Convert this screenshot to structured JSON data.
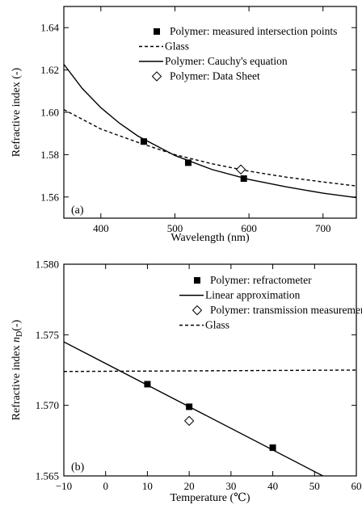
{
  "chart_data": [
    {
      "type": "line",
      "panel_label": "(a)",
      "xlabel": "Wavelength (nm)",
      "ylabel": "Refractive index (-)",
      "xlim": [
        350,
        745
      ],
      "ylim": [
        1.55,
        1.65
      ],
      "xticks": [
        400,
        500,
        600,
        700
      ],
      "yticks": [
        1.56,
        1.58,
        1.6,
        1.62,
        1.64
      ],
      "tick_labels_x": [
        "400",
        "500",
        "600",
        "700"
      ],
      "tick_labels_y": [
        "1.56",
        "1.58",
        "1.60",
        "1.62",
        "1.64"
      ],
      "legend_position": "top-right",
      "series": [
        {
          "name": "Polymer: measured intersection points",
          "kind": "square-marker",
          "x": [
            458,
            518,
            593
          ],
          "y": [
            1.5862,
            1.5762,
            1.5687
          ]
        },
        {
          "name": "Glass",
          "kind": "dashed-line",
          "x": [
            350,
            400,
            450,
            500,
            550,
            600,
            650,
            700,
            745
          ],
          "y": [
            1.6013,
            1.5921,
            1.5858,
            1.58,
            1.5757,
            1.5722,
            1.5694,
            1.5671,
            1.5652
          ]
        },
        {
          "name": "Polymer: Cauchy's equation",
          "kind": "solid-line",
          "x": [
            350,
            375,
            400,
            425,
            450,
            500,
            550,
            600,
            650,
            700,
            745
          ],
          "y": [
            1.6227,
            1.6112,
            1.6022,
            1.5949,
            1.5888,
            1.5796,
            1.573,
            1.5683,
            1.5648,
            1.5618,
            1.5597
          ]
        },
        {
          "name": "Polymer: Data Sheet",
          "kind": "diamond-marker",
          "x": [
            589
          ],
          "y": [
            1.573
          ]
        }
      ]
    },
    {
      "type": "line",
      "panel_label": "(b)",
      "xlabel": "Temperature (℃)",
      "ylabel_prefix": "Refractive index ",
      "ylabel_var": "n",
      "ylabel_sub": "D",
      "ylabel_suffix": "(-)",
      "xlim": [
        -10,
        60
      ],
      "ylim": [
        1.565,
        1.58
      ],
      "xticks": [
        -10,
        0,
        10,
        20,
        30,
        40,
        50,
        60
      ],
      "yticks": [
        1.565,
        1.57,
        1.575,
        1.58
      ],
      "tick_labels_x": [
        "−10",
        "0",
        "10",
        "20",
        "30",
        "40",
        "50",
        "60"
      ],
      "tick_labels_y": [
        "1.565",
        "1.570",
        "1.575",
        "1.580"
      ],
      "legend_position": "top-right",
      "series": [
        {
          "name": "Polymer: refractometer",
          "kind": "square-marker",
          "x": [
            10,
            20,
            40
          ],
          "y": [
            1.5715,
            1.5699,
            1.567
          ]
        },
        {
          "name": "Linear approximation",
          "kind": "solid-line",
          "x": [
            -10,
            52
          ],
          "y": [
            1.5745,
            1.565
          ]
        },
        {
          "name": "Polymer: transmission measurements",
          "kind": "diamond-marker",
          "x": [
            20
          ],
          "y": [
            1.5689
          ]
        },
        {
          "name": "Glass",
          "kind": "dashed-line",
          "x": [
            -10,
            60
          ],
          "y": [
            1.5724,
            1.5725
          ]
        }
      ]
    }
  ]
}
